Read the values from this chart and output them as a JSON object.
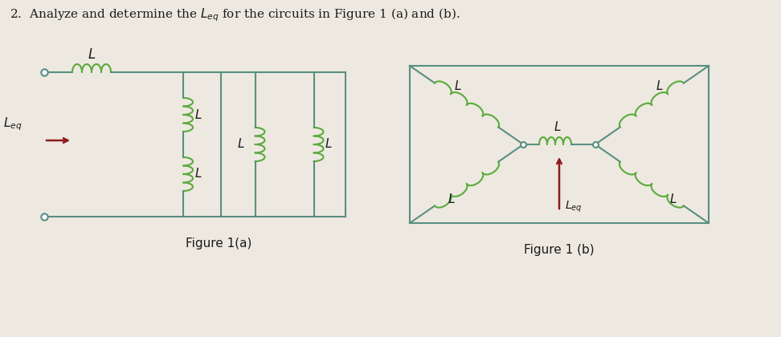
{
  "bg_color": "#ede9e0",
  "line_color": "#5a8e82",
  "coil_color": "#5aaa3c",
  "label_color": "#1a1a1a",
  "fig1a_caption": "Figure 1(a)",
  "fig1b_caption": "Figure 1 (b)",
  "arrow_color": "#8b1a1a",
  "title": "2.  Analyze and determine the $L_{eq}$ for the circuits in Figure 1 (a) and (b)."
}
